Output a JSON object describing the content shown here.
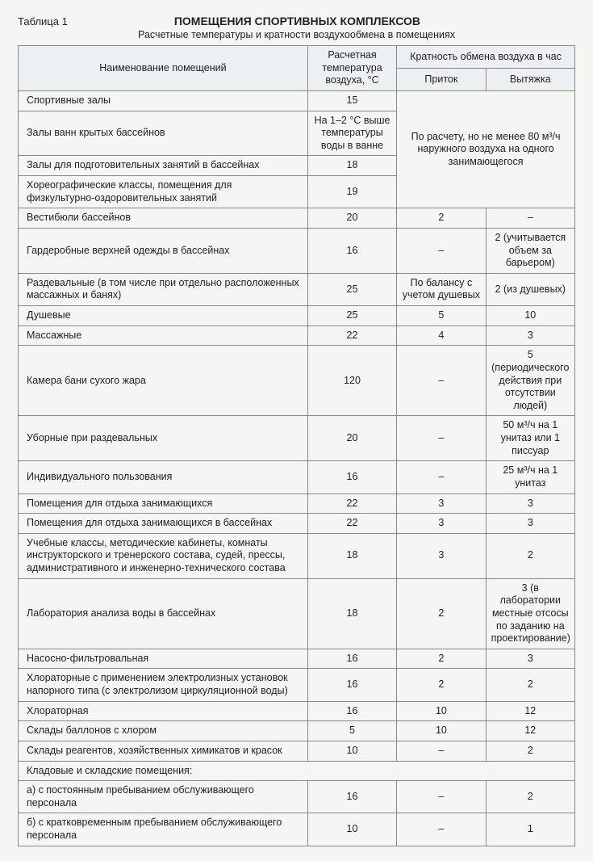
{
  "label": "Таблица 1",
  "title": "ПОМЕЩЕНИЯ СПОРТИВНЫХ КОМПЛЕКСОВ",
  "subtitle": "Расчетные температуры и кратности воздухообмена в помещениях",
  "headers": {
    "name": "Наименование помещений",
    "temp": "Расчетная температура воздуха, °С",
    "exchange": "Кратность обмена воздуха в час",
    "inflow": "Приток",
    "outflow": "Вытяжка"
  },
  "merged_note": "По расчету, но не менее 80 м³/ч наружного воздуха на одного занимающегося",
  "rows": [
    {
      "n": "Спортивные залы",
      "t": "15",
      "merge": true
    },
    {
      "n": "Залы ванн крытых бассейнов",
      "t": "На 1–2 °С выше температуры воды в ванне",
      "merge": true
    },
    {
      "n": "Залы для подготовительных занятий в бассейнах",
      "t": "18",
      "merge": true
    },
    {
      "n": "Хореографические классы, помещения для физкультурно-оздоровительных занятий",
      "t": "19",
      "merge": true
    },
    {
      "n": "Вестибюли бассейнов",
      "t": "20",
      "in": "2",
      "out": "–"
    },
    {
      "n": "Гардеробные верхней одежды в бассейнах",
      "t": "16",
      "in": "–",
      "out": "2 (учитывается объем за барьером)"
    },
    {
      "n": "Раздевальные (в том числе при отдельно расположенных массажных и банях)",
      "t": "25",
      "in": "По балансу с учетом душевых",
      "out": "2 (из душевых)"
    },
    {
      "n": "Душевые",
      "t": "25",
      "in": "5",
      "out": "10"
    },
    {
      "n": "Массажные",
      "t": "22",
      "in": "4",
      "out": "3"
    },
    {
      "n": "Камера бани сухого жара",
      "t": "120",
      "in": "–",
      "out": "5 (периодического действия при отсутствии людей)"
    },
    {
      "n": "Уборные при раздевальных",
      "t": "20",
      "in": "–",
      "out": "50 м³/ч на 1 унитаз или 1 писсуар"
    },
    {
      "n": "Индивидуального пользования",
      "t": "16",
      "in": "–",
      "out": "25 м³/ч на 1 унитаз"
    },
    {
      "n": "Помещения для отдыха занимающихся",
      "t": "22",
      "in": "3",
      "out": "3"
    },
    {
      "n": "Помещения для отдыха занимающихся в бассейнах",
      "t": "22",
      "in": "3",
      "out": "3"
    },
    {
      "n": "Учебные классы, методические кабинеты, комнаты инструкторского и тренерского состава, судей, прессы, административного и инженерно-технического состава",
      "t": "18",
      "in": "3",
      "out": "2"
    },
    {
      "n": "Лаборатория анализа воды в бассейнах",
      "t": "18",
      "in": "2",
      "out": "3 (в лаборатории местные отсосы по заданию на проектирование)"
    },
    {
      "n": "Насосно-фильтровальная",
      "t": "16",
      "in": "2",
      "out": "3"
    },
    {
      "n": "Хлораторные с применением электролизных установок напорного типа (с электролизом циркуляционной воды)",
      "t": "16",
      "in": "2",
      "out": "2"
    },
    {
      "n": "Хлораторная",
      "t": "16",
      "in": "10",
      "out": "12"
    },
    {
      "n": "Склады баллонов с хлором",
      "t": "5",
      "in": "10",
      "out": "12"
    },
    {
      "n": "Склады реагентов, хозяйственных химикатов и красок",
      "t": "10",
      "in": "–",
      "out": "2"
    },
    {
      "n": "Кладовые и складские помещения:",
      "t": "",
      "in": "",
      "out": "",
      "span": true
    },
    {
      "n": "а) с постоянным пребыванием обслуживающего персонала",
      "t": "16",
      "in": "–",
      "out": "2"
    },
    {
      "n": "б) с кратковременным пребыванием обслуживающего персонала",
      "t": "10",
      "in": "–",
      "out": "1"
    }
  ],
  "style": {
    "border_color": "#888888",
    "header_bg": "#edf0f2",
    "page_bg": "#f5f5f3",
    "text_color": "#222222",
    "font_size_pt": 9.5,
    "title_font_size_pt": 11,
    "column_widths_pct": [
      52,
      16,
      16,
      16
    ]
  }
}
